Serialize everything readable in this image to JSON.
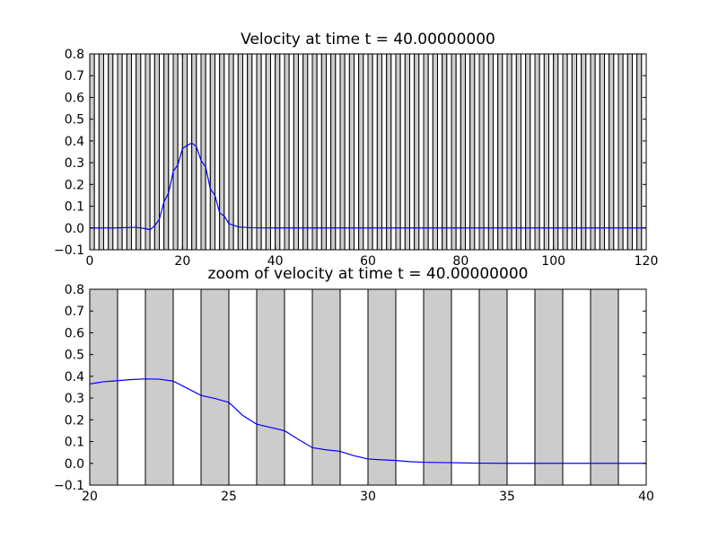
{
  "chart_data": [
    {
      "type": "line",
      "title": "Velocity at time t =    40.00000000",
      "xlabel": "",
      "ylabel": "",
      "xlim": [
        0,
        120
      ],
      "ylim": [
        -0.1,
        0.8
      ],
      "xticks": [
        "0",
        "20",
        "40",
        "60",
        "80",
        "100",
        "120"
      ],
      "yticks": [
        "−0.1",
        "0.0",
        "0.1",
        "0.2",
        "0.3",
        "0.4",
        "0.5",
        "0.6",
        "0.7",
        "0.8"
      ],
      "grid": false,
      "background_bands": {
        "start": 0,
        "end": 120,
        "width": 1,
        "shaded_every_other": true,
        "fill": "#cccccc"
      },
      "series": [
        {
          "color": "#0000ff",
          "x": [
            0,
            5,
            10,
            12,
            13,
            14,
            15,
            16,
            17,
            18,
            19,
            20,
            21,
            22,
            23,
            24,
            25,
            26,
            27,
            28,
            29,
            30,
            31,
            32,
            35,
            40,
            60,
            80,
            100,
            120
          ],
          "y": [
            0.0,
            0.0,
            0.003,
            -0.003,
            -0.008,
            0.01,
            0.04,
            0.12,
            0.16,
            0.26,
            0.29,
            0.365,
            0.38,
            0.39,
            0.375,
            0.31,
            0.28,
            0.18,
            0.15,
            0.07,
            0.055,
            0.02,
            0.012,
            0.005,
            0.001,
            0.0,
            0.0,
            0.0,
            0.0,
            0.0
          ]
        }
      ]
    },
    {
      "type": "line",
      "title": "zoom of velocity at time t =    40.00000000",
      "xlabel": "",
      "ylabel": "",
      "xlim": [
        20,
        40
      ],
      "ylim": [
        -0.1,
        0.8
      ],
      "xticks": [
        "20",
        "25",
        "30",
        "35",
        "40"
      ],
      "yticks": [
        "−0.1",
        "0.0",
        "0.1",
        "0.2",
        "0.3",
        "0.4",
        "0.5",
        "0.6",
        "0.7",
        "0.8"
      ],
      "grid": false,
      "background_bands": {
        "start": 20,
        "end": 40,
        "width": 1,
        "shaded_every_other": true,
        "fill": "#cccccc"
      },
      "series": [
        {
          "color": "#0000ff",
          "x": [
            20,
            20.5,
            21,
            21.5,
            22,
            22.5,
            23,
            23.5,
            24,
            24.5,
            25,
            25.5,
            26,
            26.5,
            27,
            27.5,
            28,
            28.5,
            29,
            29.5,
            30,
            30.5,
            31,
            31.5,
            32,
            33,
            34,
            35,
            36,
            37,
            38,
            39,
            40
          ],
          "y": [
            0.365,
            0.375,
            0.38,
            0.385,
            0.388,
            0.387,
            0.378,
            0.345,
            0.312,
            0.298,
            0.28,
            0.22,
            0.18,
            0.165,
            0.15,
            0.11,
            0.072,
            0.062,
            0.055,
            0.035,
            0.02,
            0.016,
            0.013,
            0.008,
            0.005,
            0.003,
            0.001,
            0.0,
            0.0,
            0.0,
            0.0,
            0.0,
            0.0
          ]
        }
      ]
    }
  ]
}
